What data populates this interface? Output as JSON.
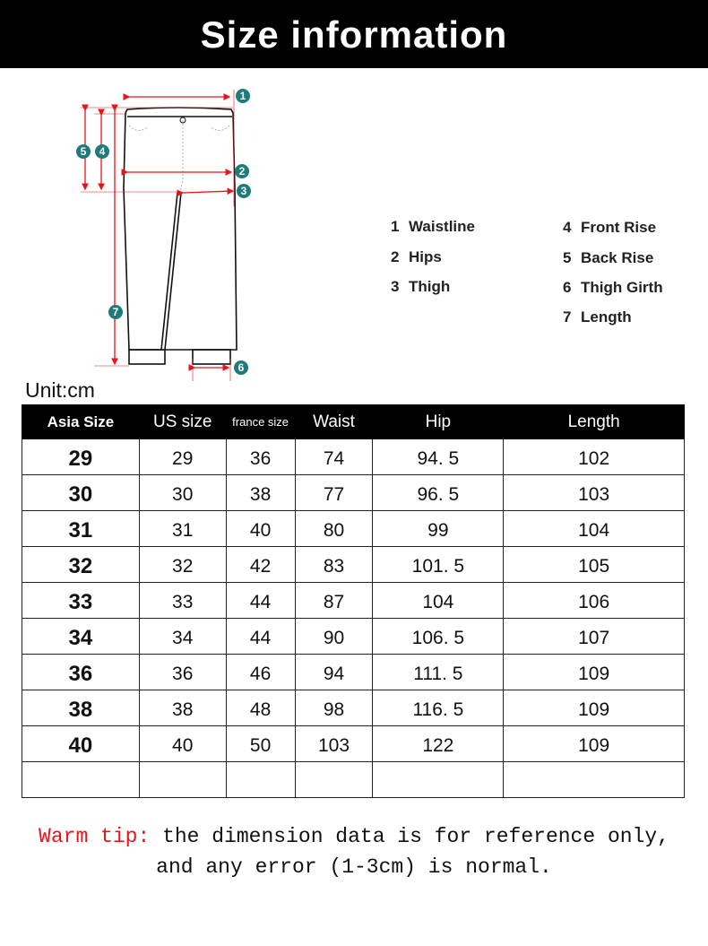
{
  "header": {
    "title": "Size information"
  },
  "diagram": {
    "markers": [
      "1",
      "2",
      "3",
      "4",
      "5",
      "6",
      "7"
    ],
    "colors": {
      "arrow": "#e8141b",
      "marker": "#1f7a7a"
    }
  },
  "legend": [
    {
      "num": "1",
      "label": "Waistline"
    },
    {
      "num": "2",
      "label": "Hips"
    },
    {
      "num": "3",
      "label": "Thigh"
    },
    {
      "num": "4",
      "label": "Front Rise"
    },
    {
      "num": "5",
      "label": "Back Rise"
    },
    {
      "num": "6",
      "label": "Thigh Girth"
    },
    {
      "num": "7",
      "label": "Length"
    }
  ],
  "unit": "Unit:cm",
  "table": {
    "headers": [
      "Asia Size",
      "US size",
      "france size",
      "Waist",
      "Hip",
      "Length"
    ],
    "rows": [
      [
        "29",
        "29",
        "36",
        "74",
        "94. 5",
        "102"
      ],
      [
        "30",
        "30",
        "38",
        "77",
        "96. 5",
        "103"
      ],
      [
        "31",
        "31",
        "40",
        "80",
        "99",
        "104"
      ],
      [
        "32",
        "32",
        "42",
        "83",
        "101. 5",
        "105"
      ],
      [
        "33",
        "33",
        "44",
        "87",
        "104",
        "106"
      ],
      [
        "34",
        "34",
        "44",
        "90",
        "106. 5",
        "107"
      ],
      [
        "36",
        "36",
        "46",
        "94",
        "111. 5",
        "109"
      ],
      [
        "38",
        "38",
        "48",
        "98",
        "116. 5",
        "109"
      ],
      [
        "40",
        "40",
        "50",
        "103",
        "122",
        "109"
      ],
      [
        "",
        "",
        "",
        "",
        "",
        ""
      ]
    ]
  },
  "tip": {
    "label": "Warm tip:",
    "line1": " the dimension data is for reference only,",
    "line2": "and any error (1-3cm) is normal."
  }
}
